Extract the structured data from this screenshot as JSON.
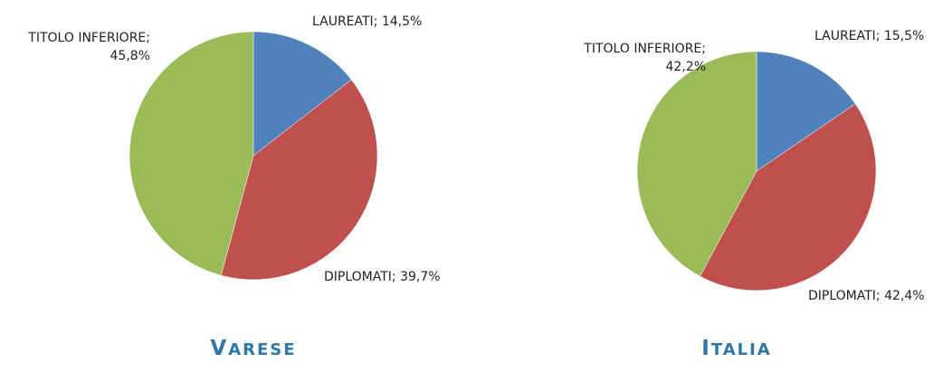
{
  "chart_data": [
    {
      "type": "pie",
      "title": "VARESE",
      "values": [
        14.5,
        39.7,
        45.8
      ],
      "value_labels": [
        "LAUREATI; 14,5%",
        "DIPLOMATI; 39,7%",
        "TITOLO INFERIORE; 45,8%"
      ],
      "colors": [
        "#4f81bd",
        "#c0504d",
        "#9bbb59"
      ]
    },
    {
      "type": "pie",
      "title": "ITALIA",
      "values": [
        15.5,
        42.4,
        42.2
      ],
      "value_labels": [
        "LAUREATI; 15,5%",
        "DIPLOMATI; 42,4%",
        "TITOLO INFERIORE; 42,2%"
      ],
      "colors": [
        "#4f81bd",
        "#c0504d",
        "#9bbb59"
      ]
    }
  ]
}
